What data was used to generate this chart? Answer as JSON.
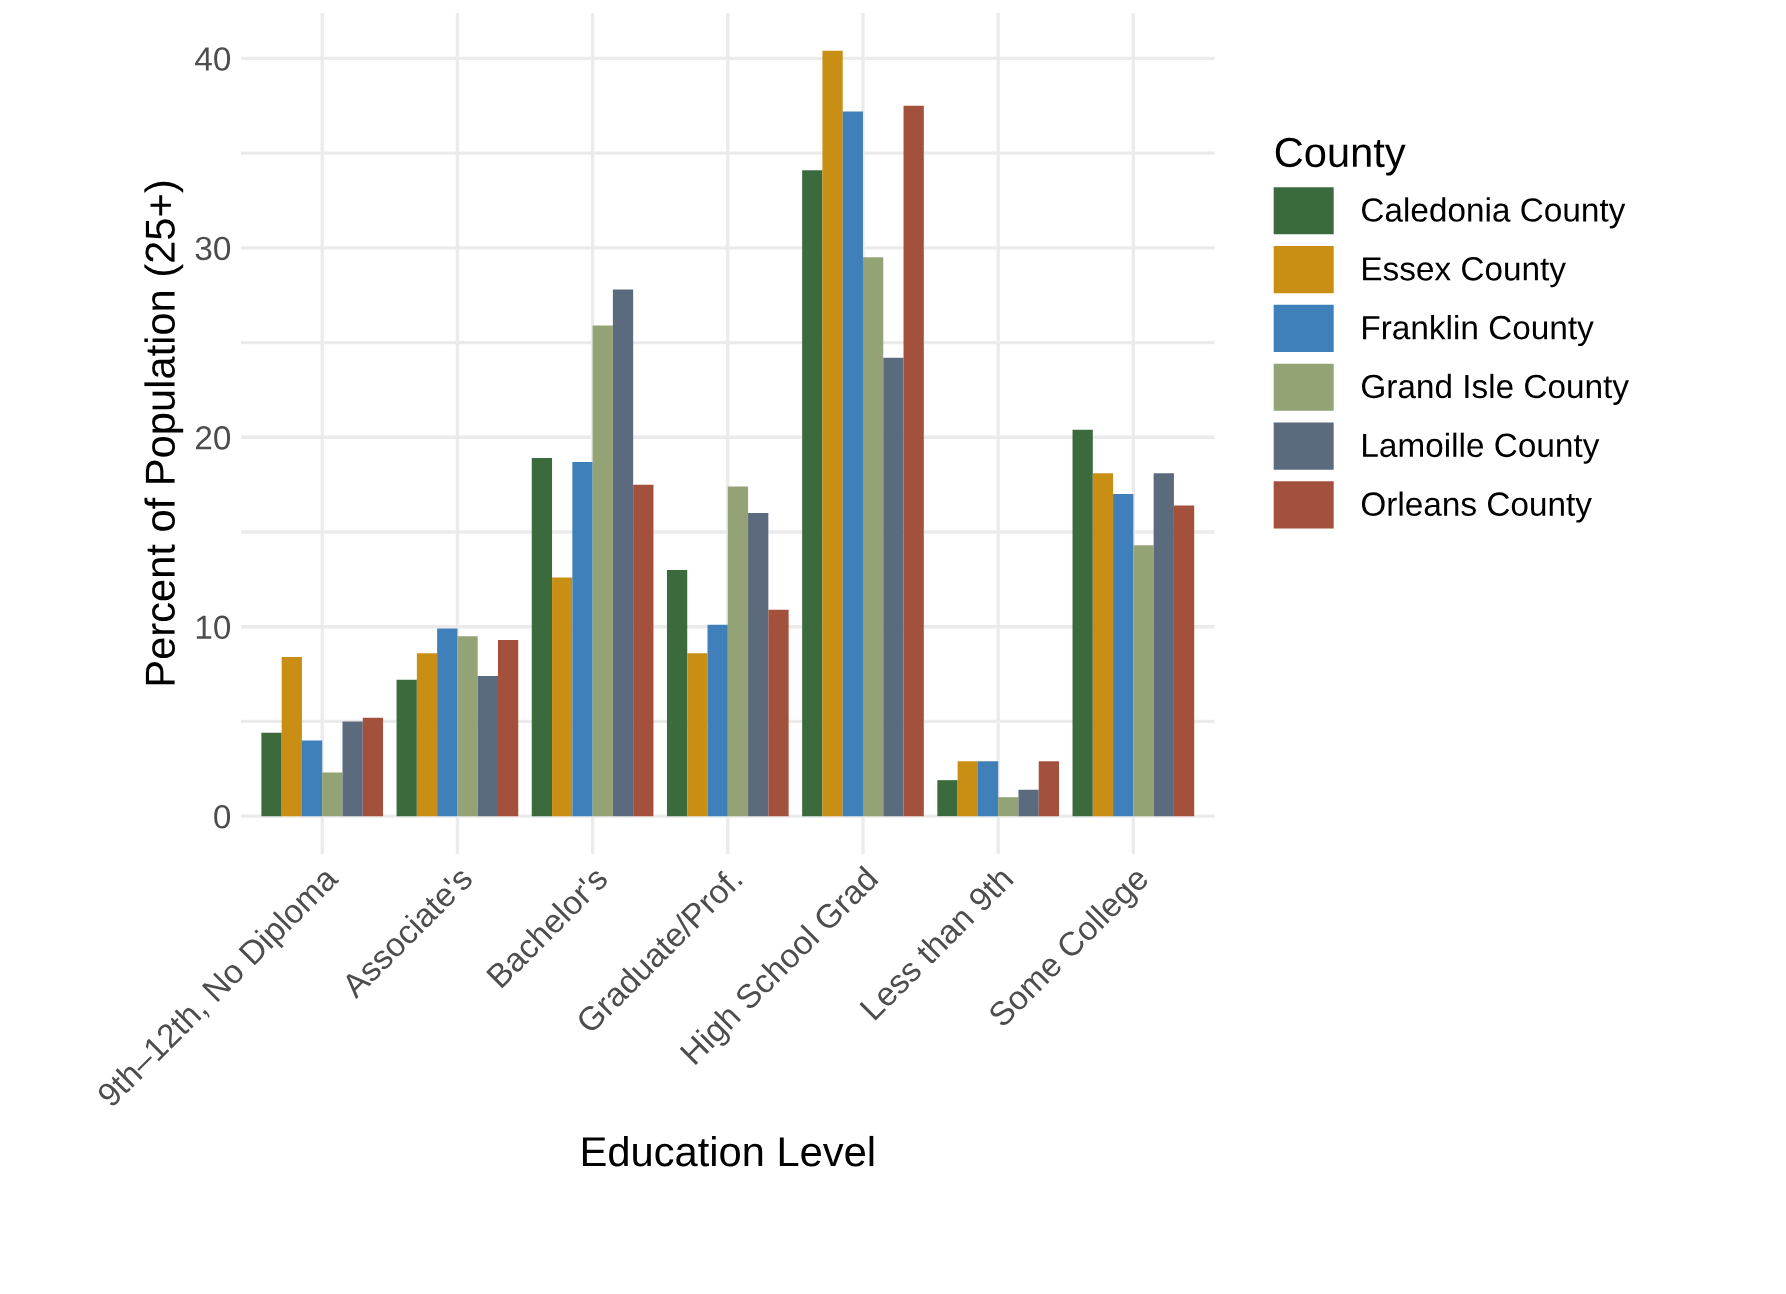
{
  "chart_data": {
    "type": "bar",
    "xlabel": "Education Level",
    "ylabel": "Percent of Population (25+)",
    "legend_title": "County",
    "legend": "right",
    "grid": true,
    "categories": [
      "9th–12th, No Diploma",
      "Associate's",
      "Bachelor's",
      "Graduate/Prof.",
      "High School Grad",
      "Less than 9th",
      "Some College"
    ],
    "ylim": [
      -2.0,
      42.4
    ],
    "yticks": [
      0,
      {
        "value": 5,
        "label": null
      },
      10,
      {
        "value": 15,
        "label": null
      },
      20,
      {
        "value": 25,
        "label": null
      },
      30,
      {
        "value": 35,
        "label": null
      },
      40
    ],
    "series": [
      {
        "name": "Caledonia County",
        "color": "#3b6b3c",
        "values": [
          4.4,
          7.2,
          18.9,
          13.0,
          34.1,
          1.9,
          20.4
        ]
      },
      {
        "name": "Essex County",
        "color": "#c98f14",
        "values": [
          8.4,
          8.6,
          12.6,
          8.6,
          40.4,
          2.9,
          18.1
        ]
      },
      {
        "name": "Franklin County",
        "color": "#3f7fba",
        "values": [
          4.0,
          9.9,
          18.7,
          10.1,
          37.2,
          2.9,
          17.0
        ]
      },
      {
        "name": "Grand Isle County",
        "color": "#93a376",
        "values": [
          2.3,
          9.5,
          25.9,
          17.4,
          29.5,
          1.0,
          14.3
        ]
      },
      {
        "name": "Lamoille County",
        "color": "#5b6a7c",
        "values": [
          5.0,
          7.4,
          27.8,
          16.0,
          24.2,
          1.4,
          18.1
        ]
      },
      {
        "name": "Orleans County",
        "color": "#a3513c",
        "values": [
          5.2,
          9.3,
          17.5,
          10.9,
          37.5,
          2.9,
          16.4
        ]
      }
    ]
  }
}
